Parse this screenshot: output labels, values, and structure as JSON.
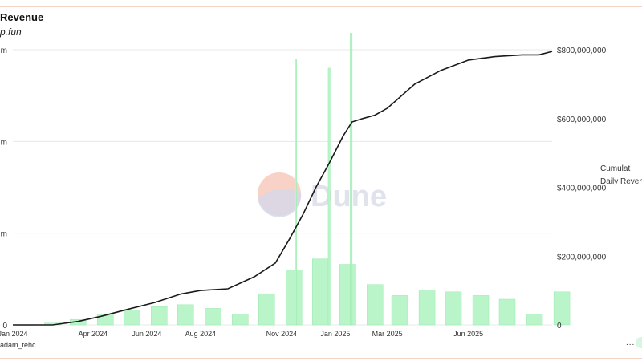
{
  "header": {
    "title": "Revenue",
    "subtitle": "p.fun"
  },
  "credit": "adam_tehc",
  "watermark": {
    "text": "Dune"
  },
  "legend": {
    "line1": "Cumulat",
    "line2": "Daily Reven"
  },
  "more_label": "...",
  "colors": {
    "line": "#1a1a1a",
    "bars": "#b9f5c9",
    "bars_edge": "#8fe5a6",
    "grid": "#e8e8e8",
    "logo_top": "#f5c3b3",
    "logo_bottom": "#d4d8e8"
  },
  "chart_data": {
    "type": "bar+line",
    "x_ticks": [
      "Jan 2024",
      "Apr 2024",
      "Jun 2024",
      "Aug 2024",
      "Nov 2024",
      "Jan 2025",
      "Mar 2025",
      "Jun 2025"
    ],
    "left_axis": {
      "ticks": [
        "m",
        "m",
        "m",
        "0"
      ],
      "ylim": [
        0,
        15
      ]
    },
    "right_axis": {
      "ticks": [
        "$800,000,000",
        "$600,000,000",
        "$400,000,000",
        "$200,000,000",
        "0"
      ],
      "ylim": [
        0,
        800000000
      ]
    },
    "cumulative_series": {
      "x": [
        "2024-01-01",
        "2024-02-15",
        "2024-03-15",
        "2024-04-10",
        "2024-05-10",
        "2024-06-10",
        "2024-07-10",
        "2024-08-01",
        "2024-09-01",
        "2024-10-01",
        "2024-10-25",
        "2024-11-10",
        "2024-11-25",
        "2024-12-10",
        "2024-12-25",
        "2025-01-10",
        "2025-01-20",
        "2025-02-01",
        "2025-02-15",
        "2025-03-01",
        "2025-04-01",
        "2025-05-01",
        "2025-06-01",
        "2025-07-01",
        "2025-08-01",
        "2025-08-20",
        "2025-09-04"
      ],
      "y": [
        0,
        0,
        10000000,
        25000000,
        45000000,
        65000000,
        90000000,
        100000000,
        105000000,
        140000000,
        180000000,
        250000000,
        320000000,
        400000000,
        470000000,
        550000000,
        590000000,
        600000000,
        610000000,
        630000000,
        700000000,
        740000000,
        770000000,
        780000000,
        785000000,
        785000000,
        795000000
      ]
    },
    "daily_series": {
      "x": [
        "2024-01",
        "2024-02",
        "2024-03",
        "2024-04",
        "2024-05",
        "2024-06",
        "2024-07",
        "2024-08",
        "2024-09",
        "2024-10",
        "2024-11",
        "2024-11-17",
        "2024-12",
        "2024-12-25",
        "2025-01",
        "2025-01-19",
        "2025-02",
        "2025-03",
        "2025-04",
        "2025-05",
        "2025-06",
        "2025-07",
        "2025-08",
        "2025-09"
      ],
      "y": [
        0.0,
        0.1,
        0.3,
        0.6,
        0.8,
        1.0,
        1.1,
        0.9,
        0.6,
        1.7,
        3.0,
        14.5,
        3.6,
        14.0,
        3.3,
        15.9,
        2.2,
        1.6,
        1.9,
        1.8,
        1.6,
        1.4,
        0.6,
        1.8
      ]
    },
    "grid": true,
    "legend": "right",
    "watermark": "Dune"
  }
}
